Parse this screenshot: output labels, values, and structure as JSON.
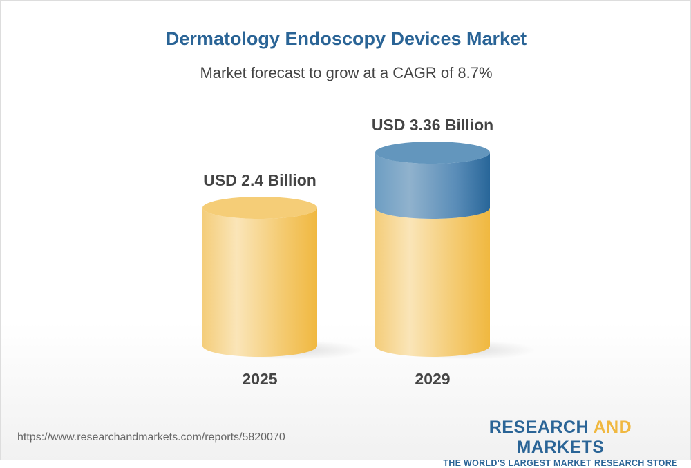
{
  "chart_data": {
    "type": "bar",
    "title": "Dermatology Endoscopy Devices Market",
    "subtitle": "Market forecast to grow at a CAGR of 8.7%",
    "categories": [
      "2025",
      "2029"
    ],
    "values": [
      2.4,
      3.36
    ],
    "data_labels": [
      "USD 2.4 Billion",
      "USD 3.36 Billion"
    ],
    "unit": "USD Billion",
    "style": "3d-cylinder",
    "colors": {
      "base": "#f2bd48",
      "growth": "#2a6496",
      "text": "#444444"
    }
  },
  "footer": {
    "url": "https://www.researchandmarkets.com/reports/5820070",
    "logo": {
      "part1": "RESEARCH ",
      "part2": "AND",
      "part3": " MARKETS",
      "tagline": "THE WORLD'S LARGEST MARKET RESEARCH STORE"
    }
  }
}
